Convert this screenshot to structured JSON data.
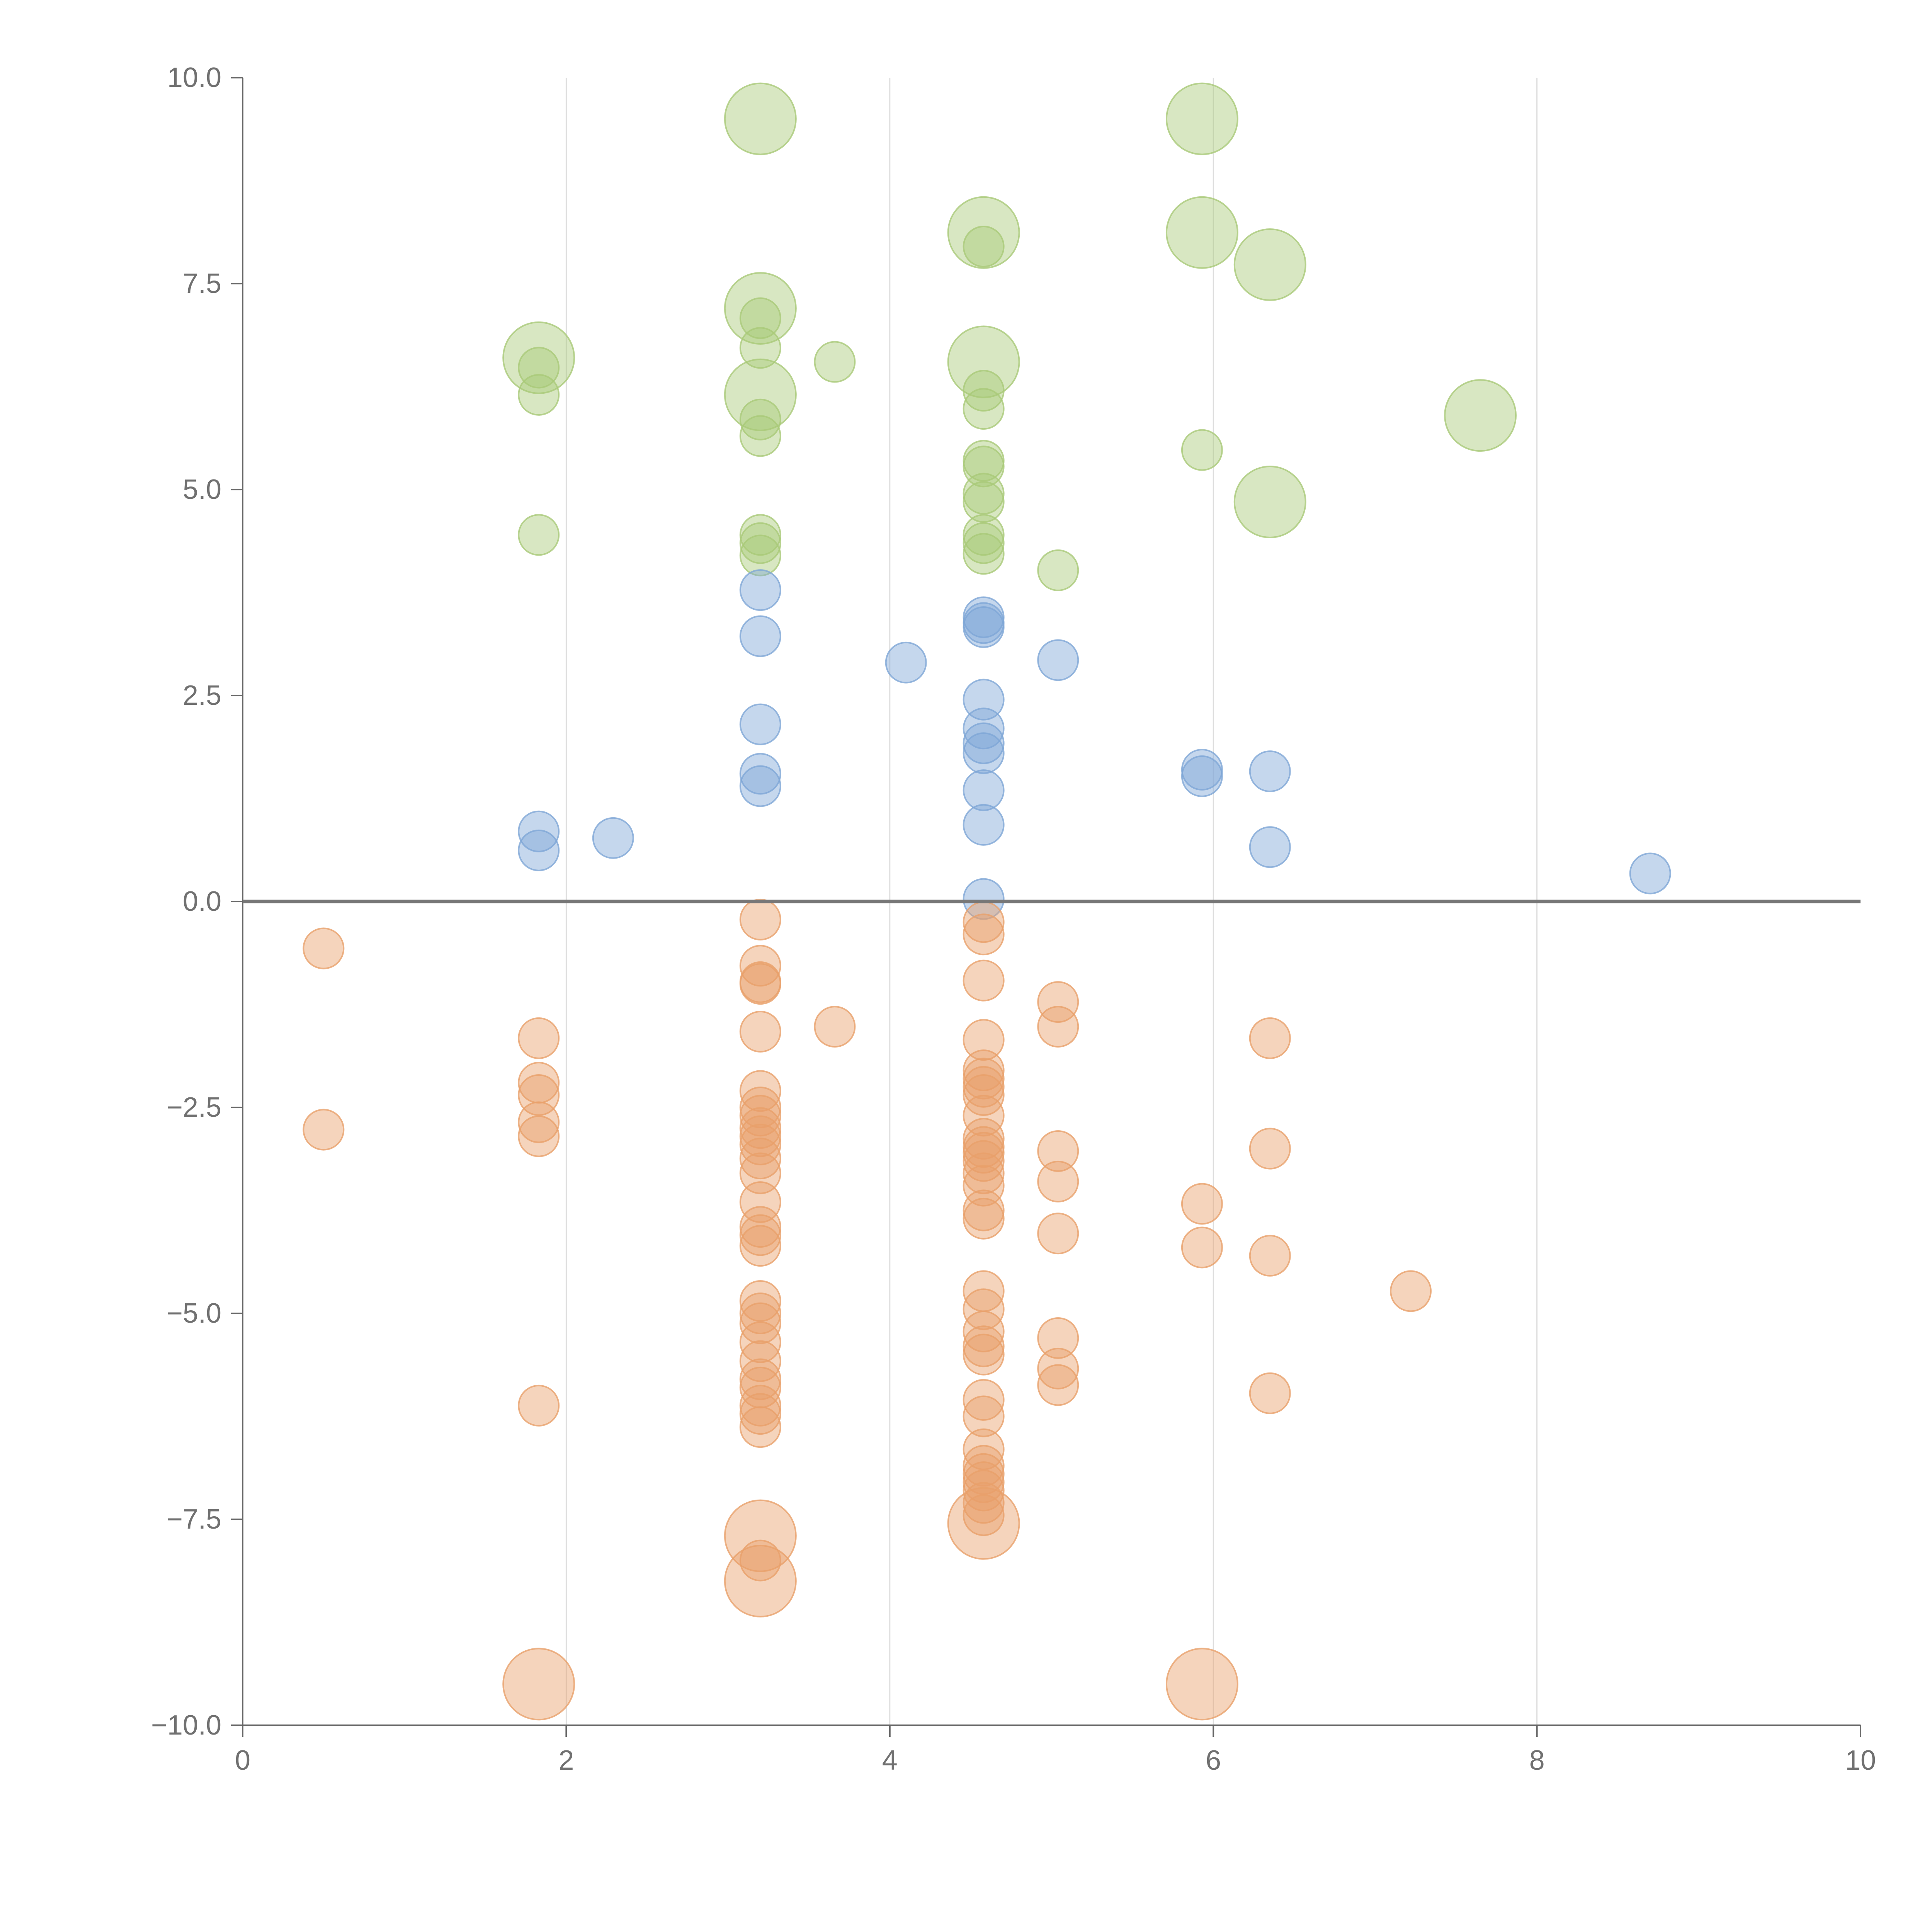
{
  "colors": {
    "blue": "#7ea6d6",
    "green": "#a9c978",
    "orange": "#e8a06a",
    "axis": "#666666",
    "grid": "#dddddd",
    "zero": "#777777"
  },
  "chart_data": {
    "type": "scatter",
    "title": "",
    "xlabel": "",
    "ylabel": "",
    "xlim": [
      0,
      10
    ],
    "ylim": [
      -10,
      10
    ],
    "grid": "vertical",
    "x_ticks": [
      {
        "value": 0,
        "label": "0"
      },
      {
        "value": 2,
        "label": "2"
      },
      {
        "value": 4,
        "label": "4"
      },
      {
        "value": 6,
        "label": "6"
      },
      {
        "value": 8,
        "label": "8"
      },
      {
        "value": 10,
        "label": "10"
      }
    ],
    "y_ticks": [
      {
        "value": 10,
        "label": "10.0"
      },
      {
        "value": 7.5,
        "label": "7.5"
      },
      {
        "value": 5,
        "label": "5.0"
      },
      {
        "value": 2.5,
        "label": "2.5"
      },
      {
        "value": 0,
        "label": "0.0"
      },
      {
        "value": -2.5,
        "label": "−2.5"
      },
      {
        "value": -5,
        "label": "−5.0"
      },
      {
        "value": -7.5,
        "label": "−7.5"
      },
      {
        "value": -10,
        "label": "−10.0"
      }
    ],
    "series": [
      {
        "name": "green",
        "color": "#a9c978",
        "points": [
          [
            3.2,
            9.5,
            3
          ],
          [
            5.93,
            9.5,
            3
          ],
          [
            4.58,
            8.12,
            3
          ],
          [
            5.93,
            8.12,
            3
          ],
          [
            6.35,
            7.73,
            3
          ],
          [
            3.2,
            7.2,
            3
          ],
          [
            1.83,
            6.6,
            3
          ],
          [
            4.58,
            6.55,
            3
          ],
          [
            3.2,
            6.15,
            3
          ],
          [
            7.65,
            5.9,
            3
          ],
          [
            6.35,
            4.85,
            3
          ],
          [
            4.58,
            7.95,
            1
          ],
          [
            3.2,
            7.08,
            1
          ],
          [
            3.2,
            6.72,
            1
          ],
          [
            3.66,
            6.55,
            1
          ],
          [
            1.83,
            6.48,
            1
          ],
          [
            1.83,
            6.15,
            1
          ],
          [
            4.58,
            6.2,
            1
          ],
          [
            4.58,
            5.98,
            1
          ],
          [
            3.2,
            5.85,
            1
          ],
          [
            3.2,
            5.65,
            1
          ],
          [
            5.93,
            5.48,
            1
          ],
          [
            4.58,
            5.35,
            1
          ],
          [
            4.58,
            5.28,
            1
          ],
          [
            4.58,
            4.95,
            1
          ],
          [
            4.58,
            4.85,
            1
          ],
          [
            1.83,
            4.45,
            1
          ],
          [
            3.2,
            4.45,
            1
          ],
          [
            4.58,
            4.45,
            1
          ],
          [
            3.2,
            4.35,
            1
          ],
          [
            4.58,
            4.35,
            1
          ],
          [
            3.2,
            4.2,
            1
          ],
          [
            4.58,
            4.22,
            1
          ],
          [
            5.04,
            4.02,
            1
          ]
        ]
      },
      {
        "name": "blue",
        "color": "#7ea6d6",
        "points": [
          [
            3.2,
            3.78,
            1
          ],
          [
            4.58,
            3.45,
            1
          ],
          [
            4.58,
            3.38,
            1
          ],
          [
            4.58,
            3.33,
            1
          ],
          [
            3.2,
            3.22,
            1
          ],
          [
            4.1,
            2.9,
            1
          ],
          [
            5.04,
            2.93,
            1
          ],
          [
            4.58,
            2.45,
            1
          ],
          [
            3.2,
            2.15,
            1
          ],
          [
            4.58,
            2.1,
            1
          ],
          [
            4.58,
            1.92,
            1
          ],
          [
            4.58,
            1.8,
            1
          ],
          [
            5.93,
            1.6,
            1
          ],
          [
            5.93,
            1.52,
            1
          ],
          [
            6.35,
            1.58,
            1
          ],
          [
            3.2,
            1.55,
            1
          ],
          [
            3.2,
            1.4,
            1
          ],
          [
            4.58,
            1.35,
            1
          ],
          [
            4.58,
            0.93,
            1
          ],
          [
            1.83,
            0.85,
            1
          ],
          [
            2.29,
            0.77,
            1
          ],
          [
            6.35,
            0.66,
            1
          ],
          [
            1.83,
            0.62,
            1
          ],
          [
            8.7,
            0.34,
            1
          ],
          [
            4.58,
            0.03,
            1
          ]
        ]
      },
      {
        "name": "orange",
        "color": "#e8a06a",
        "points": [
          [
            3.2,
            -0.22,
            1
          ],
          [
            4.58,
            -0.25,
            1
          ],
          [
            4.58,
            -0.4,
            1
          ],
          [
            0.5,
            -0.57,
            1
          ],
          [
            3.2,
            -0.78,
            1
          ],
          [
            3.2,
            -0.98,
            1
          ],
          [
            3.2,
            -1.0,
            1
          ],
          [
            4.58,
            -0.96,
            1
          ],
          [
            5.04,
            -1.22,
            1
          ],
          [
            3.66,
            -1.52,
            1
          ],
          [
            5.04,
            -1.52,
            1
          ],
          [
            3.2,
            -1.58,
            1
          ],
          [
            1.83,
            -1.66,
            1
          ],
          [
            6.35,
            -1.66,
            1
          ],
          [
            4.58,
            -1.68,
            1
          ],
          [
            4.58,
            -2.05,
            1
          ],
          [
            4.58,
            -2.15,
            1
          ],
          [
            4.58,
            -2.25,
            1
          ],
          [
            1.83,
            -2.2,
            1
          ],
          [
            3.2,
            -2.3,
            1
          ],
          [
            1.83,
            -2.35,
            1
          ],
          [
            4.58,
            -2.35,
            1
          ],
          [
            3.2,
            -2.5,
            1
          ],
          [
            3.2,
            -2.6,
            1
          ],
          [
            4.58,
            -2.6,
            1
          ],
          [
            1.83,
            -2.68,
            1
          ],
          [
            0.5,
            -2.77,
            1
          ],
          [
            3.2,
            -2.75,
            1
          ],
          [
            1.83,
            -2.85,
            1
          ],
          [
            3.2,
            -2.85,
            1
          ],
          [
            3.2,
            -2.95,
            1
          ],
          [
            4.58,
            -2.88,
            1
          ],
          [
            4.58,
            -2.98,
            1
          ],
          [
            4.58,
            -3.05,
            1
          ],
          [
            6.35,
            -3.0,
            1
          ],
          [
            5.04,
            -3.03,
            1
          ],
          [
            3.2,
            -3.12,
            1
          ],
          [
            4.58,
            -3.15,
            1
          ],
          [
            3.2,
            -3.3,
            1
          ],
          [
            4.58,
            -3.3,
            1
          ],
          [
            5.04,
            -3.4,
            1
          ],
          [
            4.58,
            -3.45,
            1
          ],
          [
            3.2,
            -3.65,
            1
          ],
          [
            5.93,
            -3.67,
            1
          ],
          [
            4.58,
            -3.75,
            1
          ],
          [
            4.58,
            -3.85,
            1
          ],
          [
            3.2,
            -3.95,
            1
          ],
          [
            3.2,
            -4.05,
            1
          ],
          [
            5.04,
            -4.03,
            1
          ],
          [
            3.2,
            -4.18,
            1
          ],
          [
            5.93,
            -4.2,
            1
          ],
          [
            6.35,
            -4.3,
            1
          ],
          [
            4.58,
            -4.73,
            1
          ],
          [
            7.22,
            -4.73,
            1
          ],
          [
            3.2,
            -4.85,
            1
          ],
          [
            4.58,
            -4.95,
            1
          ],
          [
            3.2,
            -5.0,
            1
          ],
          [
            3.2,
            -5.12,
            1
          ],
          [
            4.58,
            -5.22,
            1
          ],
          [
            5.04,
            -5.3,
            1
          ],
          [
            3.2,
            -5.35,
            1
          ],
          [
            4.58,
            -5.4,
            1
          ],
          [
            4.58,
            -5.5,
            1
          ],
          [
            3.2,
            -5.58,
            1
          ],
          [
            5.04,
            -5.67,
            1
          ],
          [
            3.2,
            -5.8,
            1
          ],
          [
            3.2,
            -5.9,
            1
          ],
          [
            5.04,
            -5.87,
            1
          ],
          [
            6.35,
            -5.97,
            1
          ],
          [
            4.58,
            -6.05,
            1
          ],
          [
            1.83,
            -6.12,
            1
          ],
          [
            3.2,
            -6.12,
            1
          ],
          [
            3.2,
            -6.22,
            1
          ],
          [
            4.58,
            -6.25,
            1
          ],
          [
            3.2,
            -6.38,
            1
          ],
          [
            4.58,
            -6.65,
            1
          ],
          [
            4.58,
            -6.85,
            1
          ],
          [
            4.58,
            -6.95,
            1
          ],
          [
            4.58,
            -7.05,
            1
          ],
          [
            4.58,
            -7.15,
            1
          ],
          [
            4.58,
            -7.3,
            1
          ],
          [
            4.58,
            -7.45,
            1
          ],
          [
            3.2,
            -8.0,
            1
          ],
          [
            4.58,
            -7.55,
            3
          ],
          [
            3.2,
            -7.7,
            3
          ],
          [
            3.2,
            -8.25,
            3
          ],
          [
            1.83,
            -9.5,
            3
          ],
          [
            5.93,
            -9.5,
            3
          ]
        ]
      }
    ]
  }
}
